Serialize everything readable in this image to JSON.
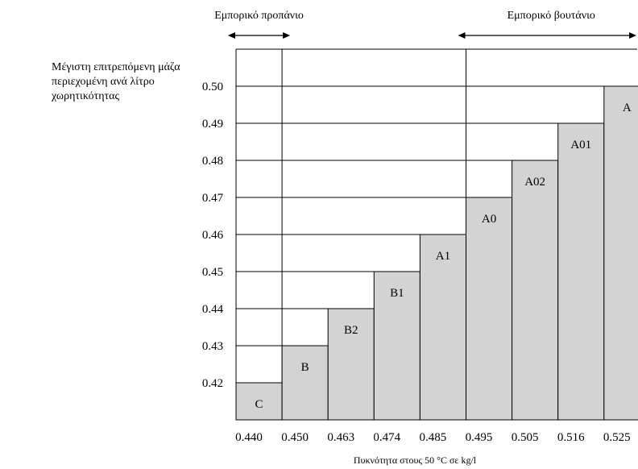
{
  "chart_data": {
    "type": "bar",
    "title": "",
    "ylabel_lines": [
      "Μέγιστη επιτρεπόμενη μάζα",
      "περιεχομένη ανά λίτρο",
      "χωρητικότητας"
    ],
    "xlabel": "Πυκνότητα στους 50 °C σε kg/l",
    "y_ticks": [
      "0.42",
      "0.43",
      "0.44",
      "0.45",
      "0.46",
      "0.47",
      "0.48",
      "0.49",
      "0.50"
    ],
    "ylim": [
      0.41,
      0.51
    ],
    "categories": [
      "0.440",
      "0.450",
      "0.463",
      "0.474",
      "0.485",
      "0.495",
      "0.505",
      "0.516",
      "0.525"
    ],
    "labels": [
      "C",
      "B",
      "B2",
      "B1",
      "A1",
      "A0",
      "A02",
      "A01",
      "A"
    ],
    "values": [
      0.42,
      0.43,
      0.44,
      0.45,
      0.46,
      0.47,
      0.48,
      0.49,
      0.5
    ],
    "bar_color": "#d3d3d3",
    "annotations": [
      {
        "text": "Εμπορικό προπάνιο",
        "from_category": 0,
        "to_category": 1
      },
      {
        "text": "Εμπορικό βουτάνιο",
        "from_category": 5,
        "to_category": 9
      }
    ]
  }
}
